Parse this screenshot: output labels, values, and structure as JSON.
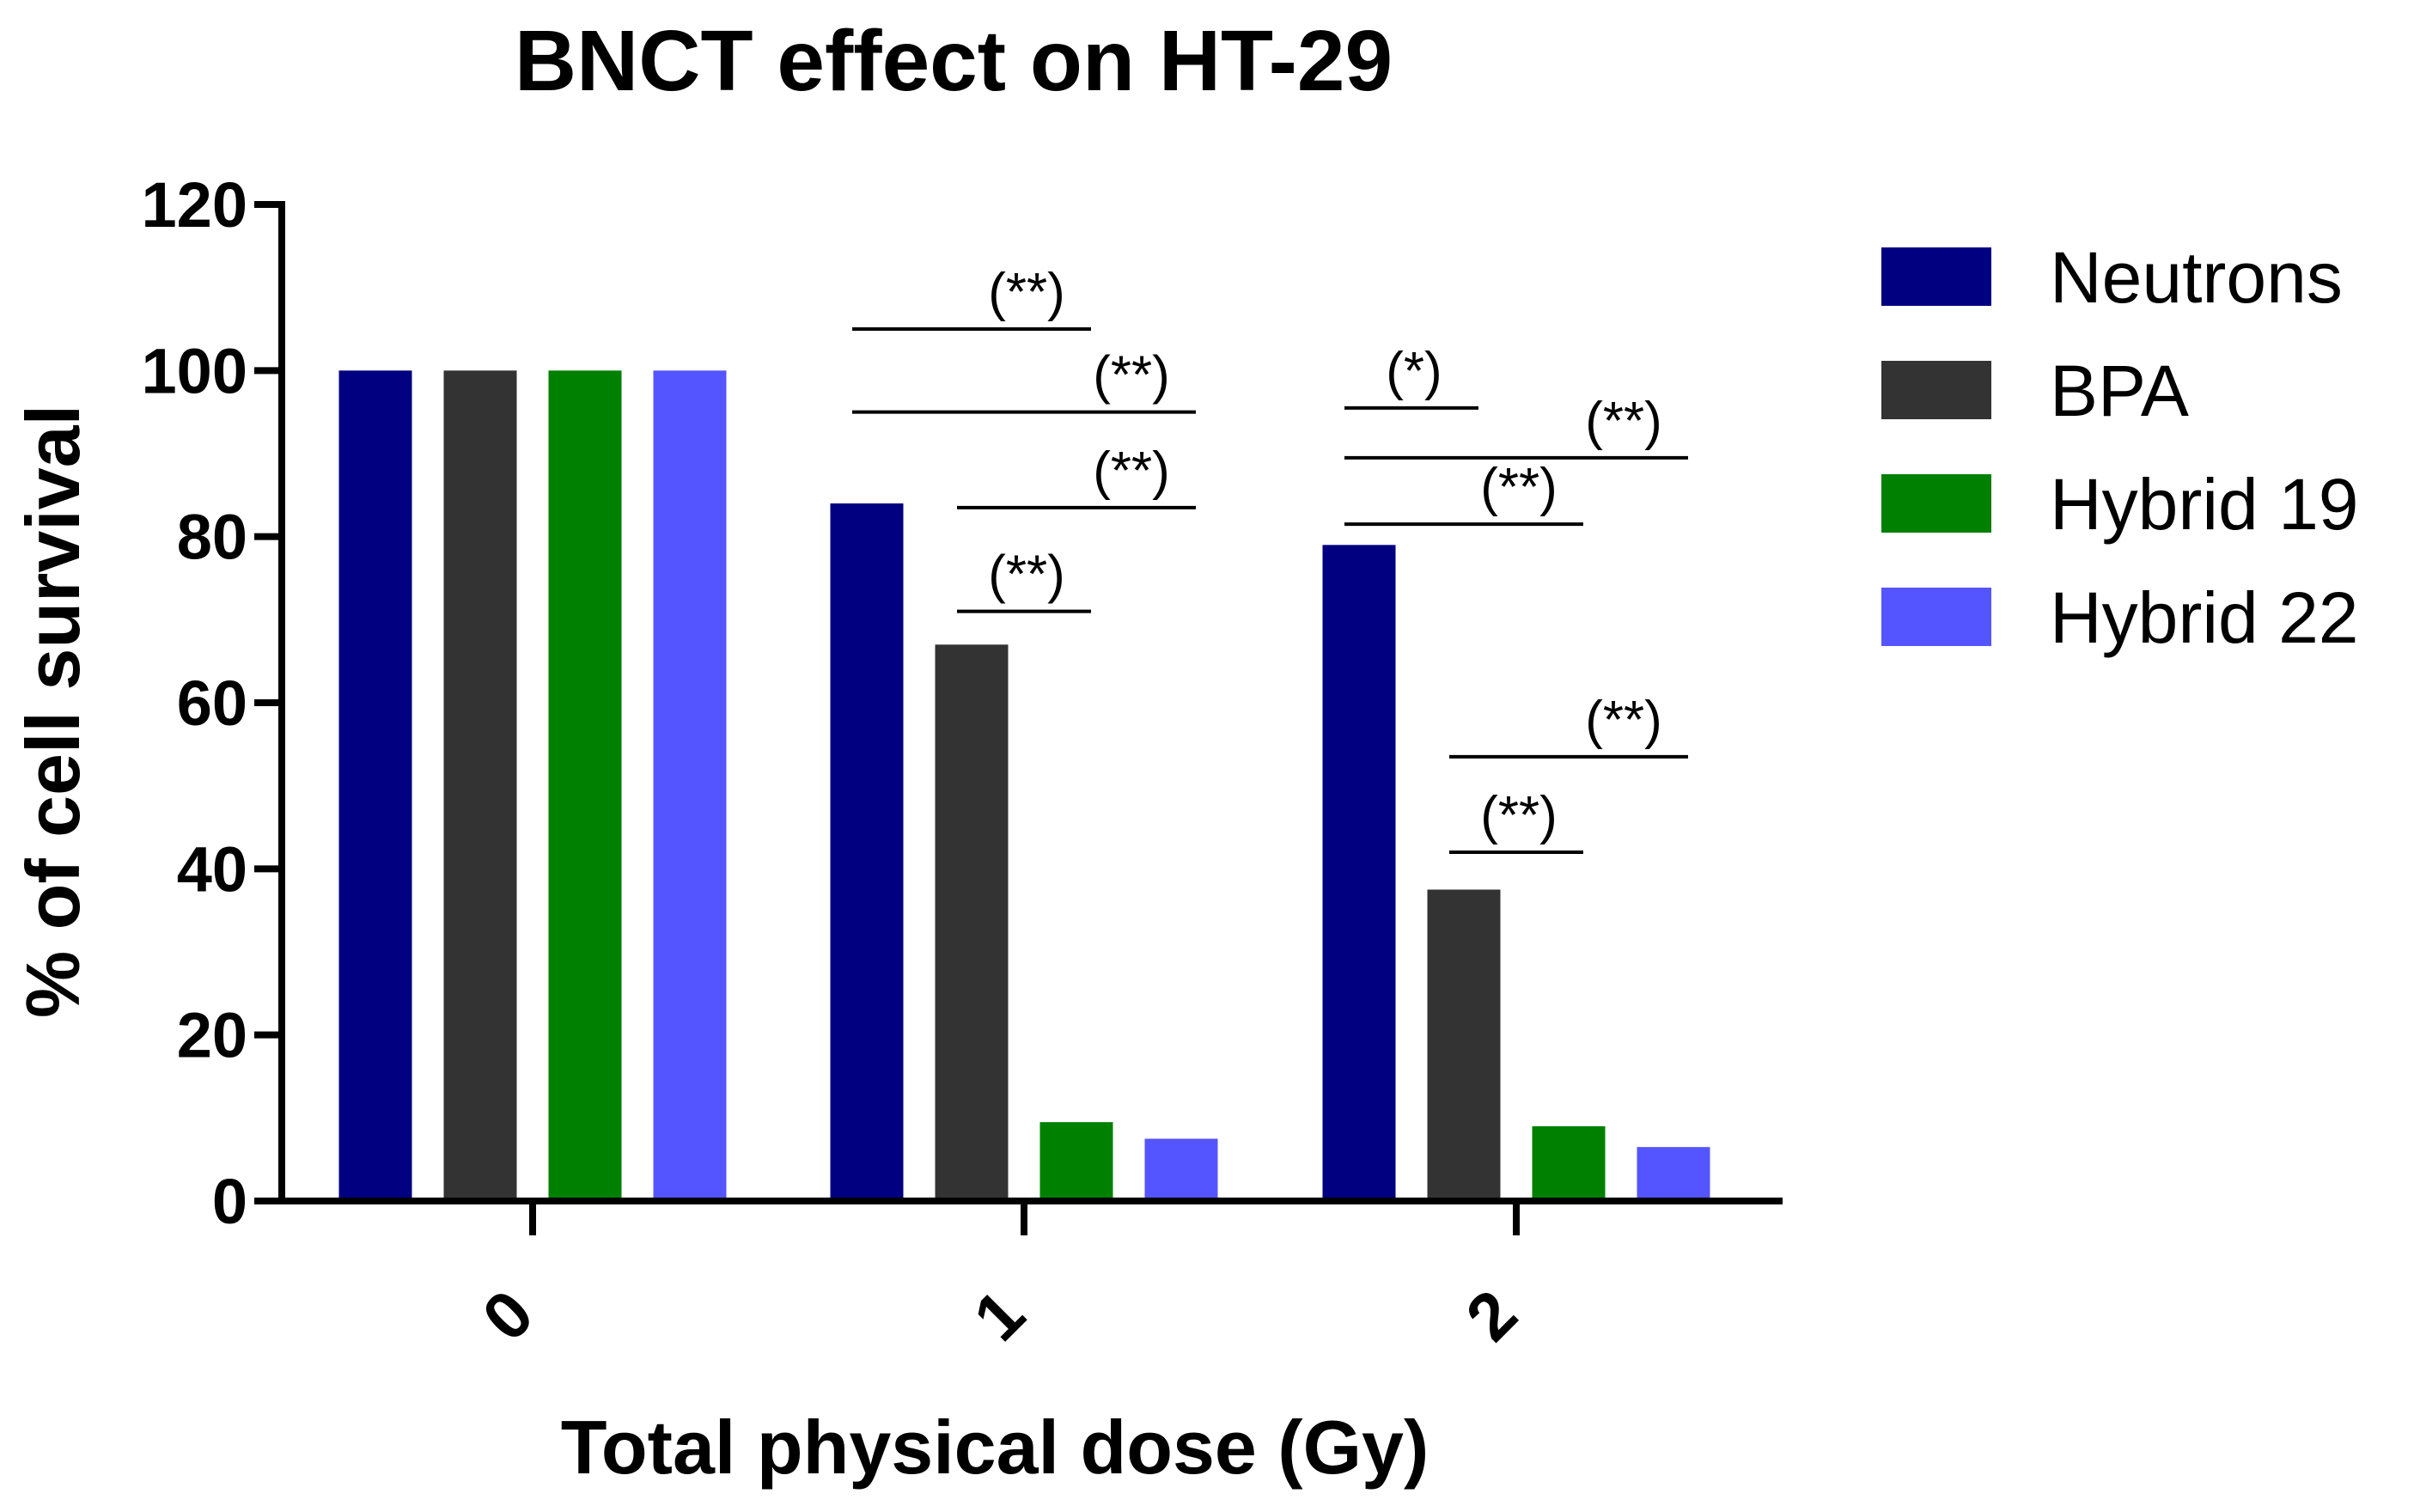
{
  "chart_data": {
    "type": "bar",
    "title": "BNCT effect on HT-29",
    "xlabel": "Total physical dose (Gy)",
    "ylabel": "% of cell survival",
    "ylim": [
      0,
      120
    ],
    "yticks": [
      "0",
      "20",
      "40",
      "60",
      "80",
      "100",
      "120"
    ],
    "categories": [
      "0",
      "1",
      "2"
    ],
    "legend_position": "right",
    "series": [
      {
        "name": "Neutrons",
        "color": "#000080",
        "values": [
          100,
          84,
          79
        ]
      },
      {
        "name": "BPA",
        "color": "#333333",
        "values": [
          100,
          67,
          37.5
        ]
      },
      {
        "name": "Hybrid 19",
        "color": "#008000",
        "values": [
          100,
          9.5,
          9
        ]
      },
      {
        "name": "Hybrid 22",
        "color": "#5555ff",
        "values": [
          100,
          7.5,
          6.5
        ]
      }
    ],
    "annotations": [
      {
        "group": "1",
        "from": "Neutrons",
        "to": "Hybrid 19",
        "label": "(**)",
        "y_data": 105
      },
      {
        "group": "1",
        "from": "Neutrons",
        "to": "Hybrid 22",
        "label": "(**)",
        "y_data": 95
      },
      {
        "group": "1",
        "from": "BPA",
        "to": "Hybrid 22",
        "label": "(**)",
        "y_data": 83.5
      },
      {
        "group": "1",
        "from": "BPA",
        "to": "Hybrid 19",
        "label": "(**)",
        "y_data": 71
      },
      {
        "group": "2",
        "from": "Neutrons",
        "to": "BPA",
        "label": "(*)",
        "y_data": 95.5
      },
      {
        "group": "2",
        "from": "Neutrons",
        "to": "Hybrid 22",
        "label": "(**)",
        "y_data": 89.5
      },
      {
        "group": "2",
        "from": "Neutrons",
        "to": "Hybrid 19",
        "label": "(**)",
        "y_data": 81.5
      },
      {
        "group": "2",
        "from": "BPA",
        "to": "Hybrid 22",
        "label": "(**)",
        "y_data": 53.5
      },
      {
        "group": "2",
        "from": "BPA",
        "to": "Hybrid 19",
        "label": "(**)",
        "y_data": 42
      }
    ]
  }
}
